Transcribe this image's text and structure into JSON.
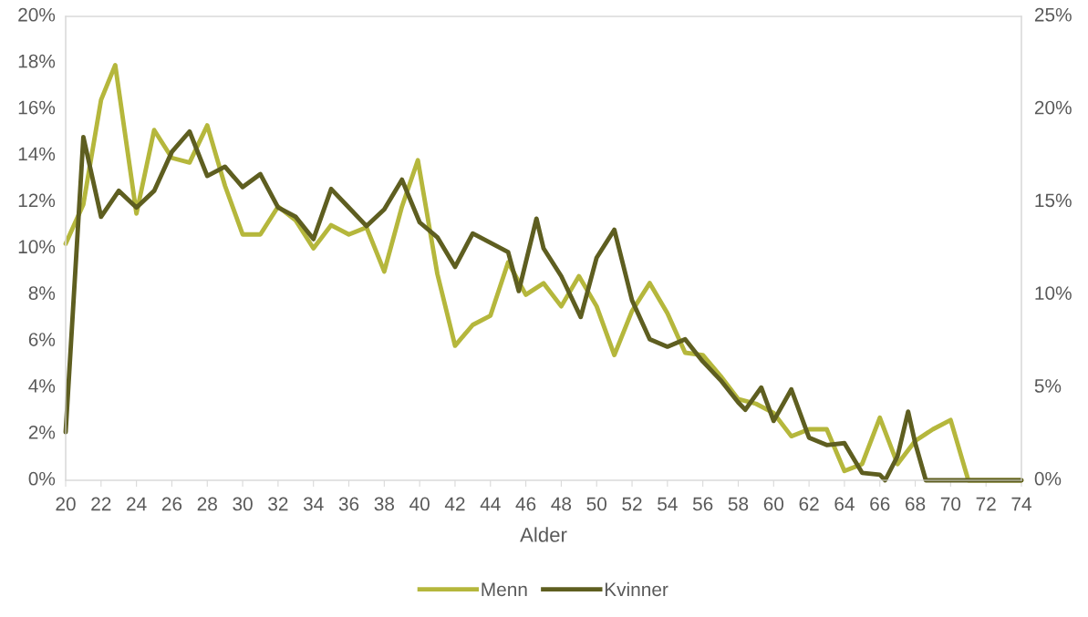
{
  "chart_data": {
    "type": "line",
    "xlabel": "Alder",
    "xlim": [
      20,
      74
    ],
    "xticks": [
      20,
      22,
      24,
      26,
      28,
      30,
      32,
      34,
      36,
      38,
      40,
      42,
      44,
      46,
      48,
      50,
      52,
      54,
      56,
      58,
      60,
      62,
      64,
      66,
      68,
      70,
      72,
      74
    ],
    "ylim": [
      0,
      20
    ],
    "yticks": [
      {
        "value": 0,
        "label": "0%"
      },
      {
        "value": 2,
        "label": "2%"
      },
      {
        "value": 4,
        "label": "4%"
      },
      {
        "value": 6,
        "label": "6%"
      },
      {
        "value": 8,
        "label": "8%"
      },
      {
        "value": 10,
        "label": "10%"
      },
      {
        "value": 12,
        "label": "12%"
      },
      {
        "value": 14,
        "label": "14%"
      },
      {
        "value": 16,
        "label": "16%"
      },
      {
        "value": 18,
        "label": "18%"
      },
      {
        "value": 20,
        "label": "20%"
      }
    ],
    "y2lim": [
      0,
      25
    ],
    "y2ticks": [
      {
        "value": 0,
        "label": "0%"
      },
      {
        "value": 5,
        "label": "5%"
      },
      {
        "value": 10,
        "label": "10%"
      },
      {
        "value": 15,
        "label": "15%"
      },
      {
        "value": 20,
        "label": "20%"
      },
      {
        "value": 25,
        "label": "25%"
      }
    ],
    "grid": false,
    "legend": "bottom",
    "marker": "none",
    "line_style": "solid",
    "series": [
      {
        "name": "Menn",
        "color": "#b5b73c",
        "x": [
          20,
          21,
          22,
          22.8,
          24,
          25,
          26,
          27,
          28,
          29,
          30,
          31,
          32,
          33,
          34,
          35,
          36,
          37,
          38,
          39,
          39.9,
          41,
          42,
          43,
          44,
          45,
          46,
          47,
          48,
          49,
          50,
          51,
          52,
          53,
          54,
          55,
          56,
          57,
          58,
          59,
          60,
          61,
          62,
          63,
          64,
          65,
          66,
          67,
          68,
          69,
          70,
          71,
          72,
          73,
          74
        ],
        "values": [
          10.2,
          11.9,
          16.4,
          17.9,
          11.5,
          15.1,
          13.9,
          13.7,
          15.3,
          12.7,
          10.6,
          10.6,
          11.8,
          11.2,
          10.0,
          11.0,
          10.6,
          10.9,
          9.0,
          11.8,
          13.8,
          8.9,
          5.8,
          6.7,
          7.1,
          9.4,
          8.0,
          8.5,
          7.5,
          8.8,
          7.5,
          5.4,
          7.3,
          8.5,
          7.2,
          5.5,
          5.4,
          4.5,
          3.5,
          3.3,
          2.9,
          1.9,
          2.2,
          2.2,
          0.4,
          0.7,
          2.7,
          0.7,
          1.7,
          2.2,
          2.6,
          0,
          0,
          0,
          0
        ]
      },
      {
        "name": "Kvinner",
        "color": "#5e5e20",
        "axis": "y2",
        "x": [
          20,
          21,
          22,
          23,
          24,
          25,
          26,
          27,
          28,
          29,
          30,
          31,
          32,
          33,
          34,
          35,
          36,
          37,
          38,
          39,
          40,
          41,
          42,
          43,
          44,
          45,
          45.6,
          46.6,
          47,
          48,
          49.1,
          50,
          51,
          52,
          53,
          54,
          55,
          56,
          57,
          58,
          58.4,
          59.3,
          60,
          61,
          62,
          63,
          64,
          65,
          66,
          66.3,
          67,
          67.6,
          68,
          68.6,
          69,
          70,
          71,
          72,
          73,
          74
        ],
        "values": [
          2.6,
          18.5,
          14.2,
          15.6,
          14.7,
          15.6,
          17.7,
          18.8,
          16.4,
          16.9,
          15.8,
          16.5,
          14.7,
          14.2,
          13.0,
          15.7,
          14.7,
          13.7,
          14.6,
          16.2,
          13.9,
          13.1,
          11.5,
          13.3,
          12.8,
          12.3,
          10.2,
          14.1,
          12.5,
          11.0,
          8.8,
          12.0,
          13.5,
          9.7,
          7.6,
          7.2,
          7.6,
          6.4,
          5.4,
          4.2,
          3.8,
          5.0,
          3.2,
          4.9,
          2.3,
          1.9,
          2.0,
          0.4,
          0.3,
          0,
          1.3,
          3.7,
          2.0,
          0,
          0,
          0,
          0,
          0,
          0,
          0
        ]
      }
    ]
  }
}
